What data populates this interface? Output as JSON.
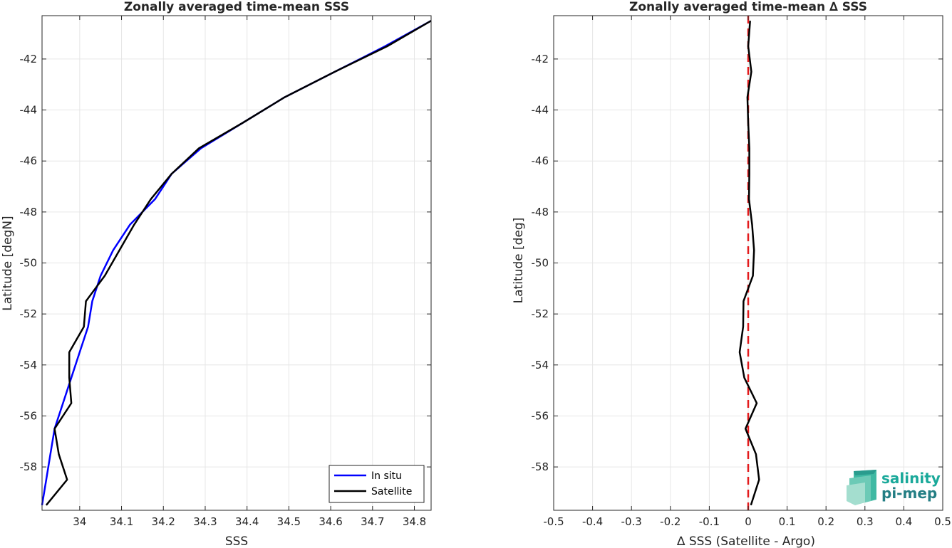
{
  "chart_data": [
    {
      "type": "line",
      "title": "Zonally averaged time-mean SSS",
      "xlabel": "SSS",
      "ylabel": "Latitude [degN]",
      "xlim": [
        33.91,
        34.84
      ],
      "ylim": [
        -59.7,
        -40.3
      ],
      "xticks": [
        "34",
        "34.1",
        "34.2",
        "34.3",
        "34.4",
        "34.5",
        "34.6",
        "34.7",
        "34.8"
      ],
      "yticks": [
        "-42",
        "-44",
        "-46",
        "-48",
        "-50",
        "-52",
        "-54",
        "-56",
        "-58"
      ],
      "grid": true,
      "legend_position": "bottom-right",
      "series": [
        {
          "name": "In situ",
          "color": "#0000ff",
          "points": [
            [
              34.84,
              -40.5
            ],
            [
              34.73,
              -41.5
            ],
            [
              34.61,
              -42.5
            ],
            [
              34.49,
              -43.5
            ],
            [
              34.39,
              -44.5
            ],
            [
              34.29,
              -45.5
            ],
            [
              34.22,
              -46.5
            ],
            [
              34.18,
              -47.5
            ],
            [
              34.12,
              -48.5
            ],
            [
              34.08,
              -49.5
            ],
            [
              34.05,
              -50.5
            ],
            [
              34.03,
              -51.5
            ],
            [
              34.02,
              -52.5
            ],
            [
              34.0,
              -53.5
            ],
            [
              33.98,
              -54.5
            ],
            [
              33.96,
              -55.5
            ],
            [
              33.94,
              -56.5
            ],
            [
              33.93,
              -57.5
            ],
            [
              33.92,
              -58.5
            ],
            [
              33.91,
              -59.5
            ]
          ]
        },
        {
          "name": "Satellite",
          "color": "#000000",
          "points": [
            [
              34.84,
              -40.5
            ],
            [
              34.735,
              -41.5
            ],
            [
              34.61,
              -42.5
            ],
            [
              34.49,
              -43.5
            ],
            [
              34.39,
              -44.5
            ],
            [
              34.285,
              -45.5
            ],
            [
              34.22,
              -46.5
            ],
            [
              34.17,
              -47.5
            ],
            [
              34.13,
              -48.5
            ],
            [
              34.095,
              -49.5
            ],
            [
              34.06,
              -50.5
            ],
            [
              34.015,
              -51.5
            ],
            [
              34.01,
              -52.5
            ],
            [
              33.975,
              -53.5
            ],
            [
              33.975,
              -54.5
            ],
            [
              33.98,
              -55.5
            ],
            [
              33.94,
              -56.5
            ],
            [
              33.95,
              -57.5
            ],
            [
              33.97,
              -58.5
            ],
            [
              33.92,
              -59.5
            ]
          ]
        }
      ]
    },
    {
      "type": "line",
      "title": "Zonally averaged time-mean ∆ SSS",
      "xlabel": "∆ SSS (Satellite - Argo)",
      "ylabel": "Latitude [deg]",
      "xlim": [
        -0.5,
        0.5
      ],
      "ylim": [
        -59.7,
        -40.3
      ],
      "xticks": [
        "-0.5",
        "-0.4",
        "-0.3",
        "-0.2",
        "-0.1",
        "0",
        "0.1",
        "0.2",
        "0.3",
        "0.4",
        "0.5"
      ],
      "yticks": [
        "-42",
        "-44",
        "-46",
        "-48",
        "-50",
        "-52",
        "-54",
        "-56",
        "-58"
      ],
      "grid": true,
      "reference_line": {
        "x": 0,
        "color": "#e31a1c",
        "style": "dashed"
      },
      "series": [
        {
          "color": "#000000",
          "points": [
            [
              0.005,
              -40.5
            ],
            [
              0.0,
              -41.5
            ],
            [
              0.008,
              -42.5
            ],
            [
              -0.002,
              -43.5
            ],
            [
              0.0,
              -44.5
            ],
            [
              0.003,
              -45.5
            ],
            [
              0.003,
              -46.5
            ],
            [
              0.002,
              -47.5
            ],
            [
              0.01,
              -48.5
            ],
            [
              0.015,
              -49.5
            ],
            [
              0.012,
              -50.5
            ],
            [
              -0.012,
              -51.5
            ],
            [
              -0.013,
              -52.5
            ],
            [
              -0.022,
              -53.5
            ],
            [
              -0.01,
              -54.5
            ],
            [
              0.022,
              -55.5
            ],
            [
              -0.007,
              -56.5
            ],
            [
              0.02,
              -57.5
            ],
            [
              0.028,
              -58.5
            ],
            [
              0.007,
              -59.5
            ]
          ]
        }
      ]
    }
  ],
  "logo": {
    "line1": "salinity",
    "line2": "pi-mep"
  },
  "colors": {
    "axis": "#262626",
    "grid": "#e6e6e6",
    "logo_teal": "#1aa99a",
    "logo_dark": "#237e84"
  }
}
